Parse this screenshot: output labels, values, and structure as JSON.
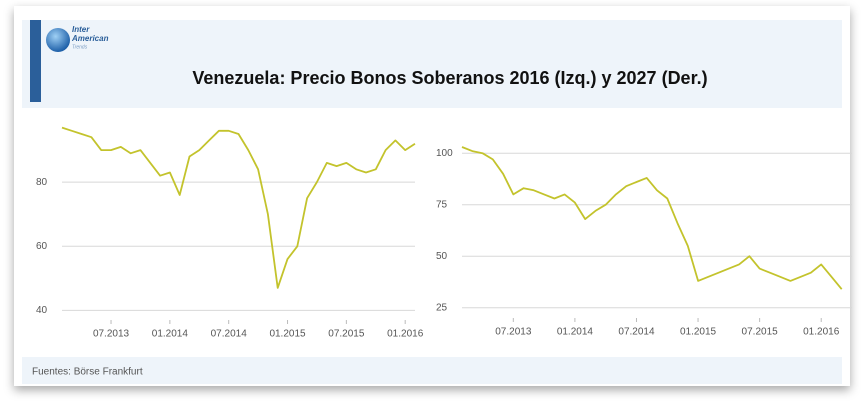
{
  "header": {
    "logo": [
      "Inter",
      "American",
      "Trends"
    ],
    "title": "Venezuela: Precio Bonos Soberanos 2016 (Izq.) y 2027 (Der.)"
  },
  "footer": {
    "source": "Fuentes: Börse Frankfurt"
  },
  "chart_data": [
    {
      "type": "line",
      "color": "#c3c32c",
      "x": [
        "02.2013",
        "03.2013",
        "04.2013",
        "05.2013",
        "06.2013",
        "07.2013",
        "08.2013",
        "09.2013",
        "10.2013",
        "11.2013",
        "12.2013",
        "01.2014",
        "02.2014",
        "03.2014",
        "04.2014",
        "05.2014",
        "06.2014",
        "07.2014",
        "08.2014",
        "09.2014",
        "10.2014",
        "11.2014",
        "12.2014",
        "01.2015",
        "02.2015",
        "03.2015",
        "04.2015",
        "05.2015",
        "06.2015",
        "07.2015",
        "08.2015",
        "09.2015",
        "10.2015",
        "11.2015",
        "12.2015",
        "01.2016",
        "02.2016"
      ],
      "values": [
        97,
        96,
        95,
        94,
        90,
        90,
        91,
        89,
        90,
        86,
        82,
        83,
        76,
        88,
        90,
        93,
        96,
        96,
        95,
        90,
        84,
        70,
        47,
        56,
        60,
        75,
        80,
        86,
        85,
        86,
        84,
        83,
        84,
        90,
        93,
        90,
        92
      ],
      "xlim": [
        "02.2013",
        "02.2016"
      ],
      "xticks": [
        "07.2013",
        "01.2014",
        "07.2014",
        "01.2015",
        "07.2015",
        "01.2016"
      ],
      "ylim": [
        37,
        100
      ],
      "yticks": [
        40,
        60,
        80
      ],
      "grid": true
    },
    {
      "type": "line",
      "color": "#c3c32c",
      "x": [
        "02.2013",
        "03.2013",
        "04.2013",
        "05.2013",
        "06.2013",
        "07.2013",
        "08.2013",
        "09.2013",
        "10.2013",
        "11.2013",
        "12.2013",
        "01.2014",
        "02.2014",
        "03.2014",
        "04.2014",
        "05.2014",
        "06.2014",
        "07.2014",
        "08.2014",
        "09.2014",
        "10.2014",
        "11.2014",
        "12.2014",
        "01.2015",
        "02.2015",
        "03.2015",
        "04.2015",
        "05.2015",
        "06.2015",
        "07.2015",
        "08.2015",
        "09.2015",
        "10.2015",
        "11.2015",
        "12.2015",
        "01.2016",
        "02.2016",
        "03.2016"
      ],
      "values": [
        103,
        101,
        100,
        97,
        90,
        80,
        83,
        82,
        80,
        78,
        80,
        76,
        68,
        72,
        75,
        80,
        84,
        86,
        88,
        82,
        78,
        66,
        55,
        38,
        40,
        42,
        44,
        46,
        50,
        44,
        42,
        40,
        38,
        40,
        42,
        46,
        40,
        34
      ],
      "xlim": [
        "02.2013",
        "04.2016"
      ],
      "xticks": [
        "07.2013",
        "01.2014",
        "07.2014",
        "01.2015",
        "07.2015",
        "01.2016"
      ],
      "ylim": [
        20,
        120
      ],
      "yticks": [
        25,
        50,
        75,
        100
      ],
      "grid": true
    }
  ]
}
